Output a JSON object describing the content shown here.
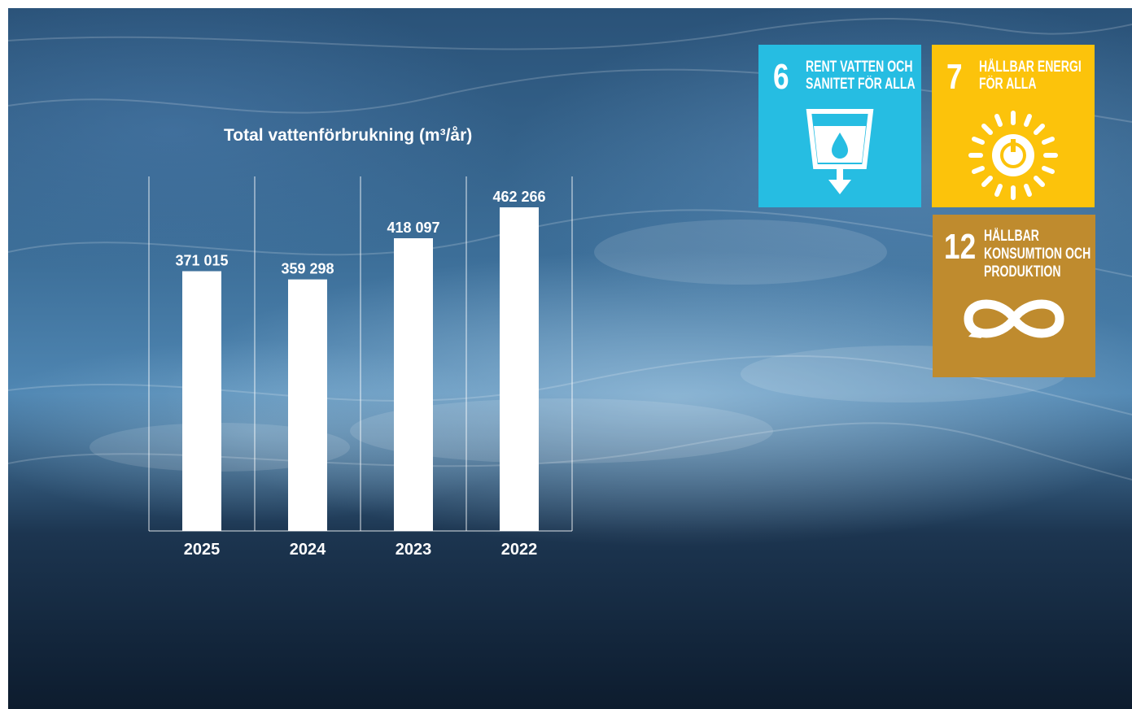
{
  "chart_data": {
    "type": "bar",
    "title": "Total vattenförbrukning (m³/år)",
    "categories": [
      "2025",
      "2024",
      "2023",
      "2022"
    ],
    "values": [
      371015,
      359298,
      418097,
      462266
    ],
    "value_labels": [
      "371 015",
      "359 298",
      "418 097",
      "462 266"
    ],
    "ylim": [
      0,
      462266
    ],
    "grid": true,
    "colors": {
      "bar": "#ffffff",
      "grid": "#ffffff"
    }
  },
  "sdg_tiles": [
    {
      "number": "6",
      "label_line1": "RENT VATTEN OCH",
      "label_line2": "SANITET FÖR ALLA",
      "icon": "water-glass-icon",
      "color": "#26bde2"
    },
    {
      "number": "7",
      "label_line1": "HÅLLBAR ENERGI",
      "label_line2": "FÖR ALLA",
      "icon": "sun-power-icon",
      "color": "#fcc30b"
    },
    {
      "number": "12",
      "label_line1": "HÅLLBAR",
      "label_line2": "KONSUMTION OCH",
      "label_line3": "PRODUKTION",
      "icon": "infinity-loop-icon",
      "color": "#bf8b2e"
    }
  ]
}
